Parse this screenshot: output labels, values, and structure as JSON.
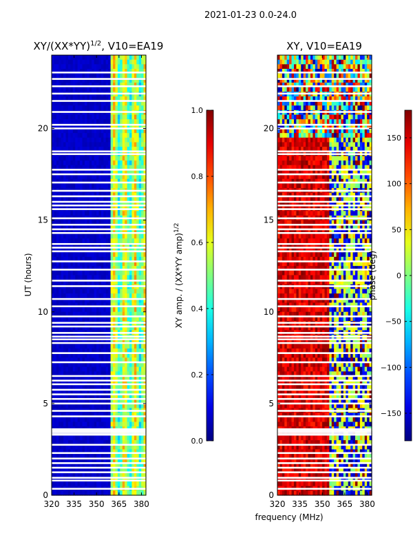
{
  "figure": {
    "suptitle": "2021-01-23 0.0-24.0",
    "xlabel_shared": "frequency (MHz)"
  },
  "chart_data": [
    {
      "type": "heatmap",
      "title": "XY/(XX*YY)^{1/2}, V10=EA19",
      "title_main": "XY/(XX*YY)",
      "title_exp": "1/2",
      "title_tail": ", V10=EA19",
      "xlabel": "",
      "ylabel": "UT (hours)",
      "xlim": [
        320,
        383
      ],
      "ylim": [
        0,
        24
      ],
      "x_ticks": [
        320,
        335,
        350,
        365,
        380
      ],
      "y_ticks": [
        0,
        5,
        10,
        15,
        20
      ],
      "colorbar": {
        "label": "XY amp. / (XX*YY amp)^{1/2}",
        "label_main": "XY amp. / (XX*YY amp)",
        "label_exp": "1/2",
        "range": [
          0.0,
          1.0
        ],
        "ticks": [
          0.0,
          0.2,
          0.4,
          0.6,
          0.8,
          1.0
        ],
        "tick_labels": [
          "0.0",
          "0.2",
          "0.4",
          "0.6",
          "0.8",
          "1.0"
        ],
        "colormap": "jet"
      },
      "pattern": "mostly low (~0.05) below 360 MHz; bands of ~0.4-0.7 between 360 and 382 MHz"
    },
    {
      "type": "heatmap",
      "title": "XY, V10=EA19",
      "xlabel": "frequency (MHz)",
      "ylabel": "",
      "xlim": [
        320,
        383
      ],
      "ylim": [
        0,
        24
      ],
      "x_ticks": [
        320,
        335,
        350,
        365,
        380
      ],
      "y_ticks": [
        0,
        5,
        10,
        15,
        20
      ],
      "colorbar": {
        "label": "phase (deg)",
        "range": [
          -180,
          180
        ],
        "ticks": [
          -150,
          -100,
          -50,
          0,
          50,
          100,
          150
        ],
        "tick_labels": [
          "−150",
          "−100",
          "−50",
          "0",
          "50",
          "100",
          "150"
        ],
        "colormap": "jet"
      },
      "pattern": "phase mostly ~+150 deg (red) below ~355 MHz, mixed blue/cyan/yellow above; noisy above 19 h"
    }
  ],
  "flagged_hours": [
    0.35,
    0.8,
    0.95,
    1.25,
    1.5,
    1.75,
    2.0,
    2.3,
    2.75,
    3.3,
    3.4,
    3.5,
    3.6,
    4.3,
    4.6,
    5.0,
    5.25,
    5.5,
    5.75,
    6.05,
    6.25,
    6.5,
    7.25,
    7.75,
    8.3,
    8.5,
    8.65,
    8.85,
    9.2,
    9.4,
    9.75,
    10.3,
    10.7,
    11.4,
    11.7,
    12.3,
    12.75,
    13.3,
    13.5,
    13.7,
    14.3,
    14.5,
    14.75,
    15.1,
    15.6,
    15.8,
    16.0,
    16.3,
    16.6,
    17.05,
    17.5,
    17.75,
    18.6,
    18.75,
    20.0,
    20.2,
    20.9,
    21.5,
    21.9,
    22.3,
    22.7,
    23.05
  ]
}
